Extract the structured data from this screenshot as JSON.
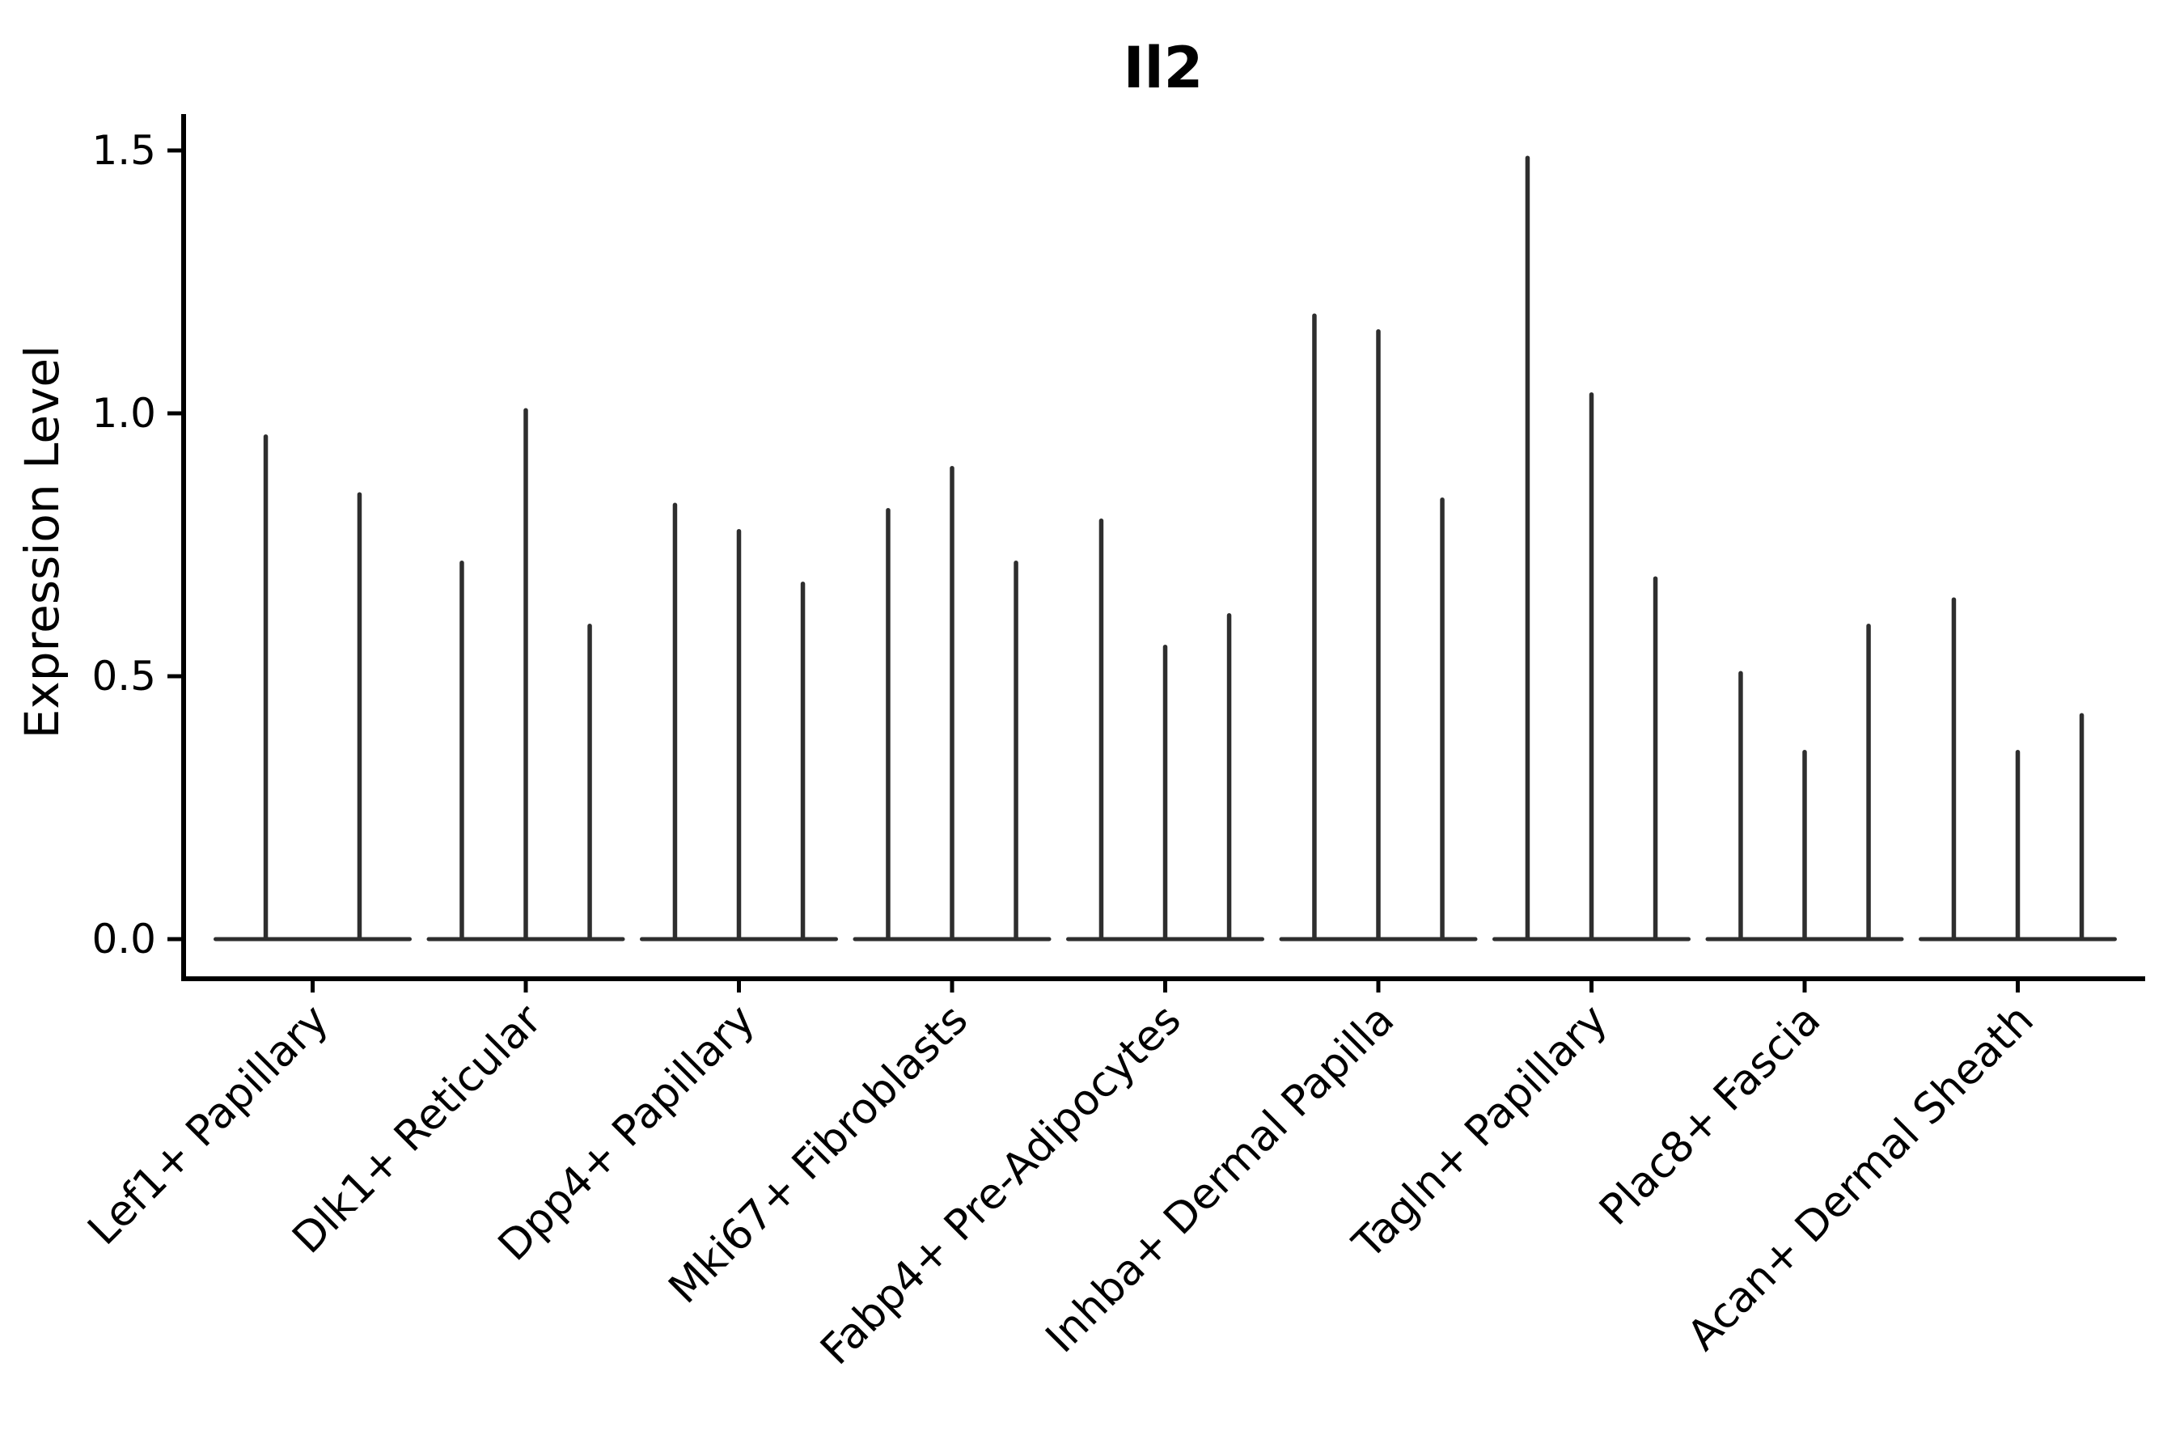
{
  "title": "Il2",
  "colors": {
    "violin": "#2e2e2e",
    "axis": "#000000",
    "text": "#000000",
    "background": "#ffffff"
  },
  "chart_data": {
    "type": "violin",
    "title": "Il2",
    "xlabel": "",
    "ylabel": "Expression Level",
    "ylim": [
      -0.08,
      1.57
    ],
    "yticks": [
      0,
      0.5,
      1,
      1.5
    ],
    "ytick_labels": [
      "0.0",
      "0.5",
      "1.0",
      "1.5"
    ],
    "grid": false,
    "legend": false,
    "x_tick_rotation": 45,
    "categories": [
      "Lef1+ Papillary",
      "Dlk1+ Reticular",
      "Dpp4+ Papillary",
      "Mki67+ Fibroblasts",
      "Fabp4+ Pre-Adipocytes",
      "Inhba+ Dermal Papilla",
      "Tagln+ Papillary",
      "Plac8+ Fascia",
      "Acan+ Dermal Sheath"
    ],
    "groups": [
      {
        "category": "Lef1+ Papillary",
        "violins": [
          {
            "offset": -0.22,
            "max": 0.96
          },
          {
            "offset": 0.22,
            "max": 0.85
          }
        ]
      },
      {
        "category": "Dlk1+ Reticular",
        "violins": [
          {
            "offset": -0.3,
            "max": 0.72
          },
          {
            "offset": 0,
            "max": 1.01
          },
          {
            "offset": 0.3,
            "max": 0.6
          }
        ]
      },
      {
        "category": "Dpp4+ Papillary",
        "violins": [
          {
            "offset": -0.3,
            "max": 0.83
          },
          {
            "offset": 0,
            "max": 0.78
          },
          {
            "offset": 0.3,
            "max": 0.68
          }
        ]
      },
      {
        "category": "Mki67+ Fibroblasts",
        "violins": [
          {
            "offset": -0.3,
            "max": 0.82
          },
          {
            "offset": 0,
            "max": 0.9
          },
          {
            "offset": 0.3,
            "max": 0.72
          }
        ]
      },
      {
        "category": "Fabp4+ Pre-Adipocytes",
        "violins": [
          {
            "offset": -0.3,
            "max": 0.8
          },
          {
            "offset": 0,
            "max": 0.56
          },
          {
            "offset": 0.3,
            "max": 0.62
          }
        ]
      },
      {
        "category": "Inhba+ Dermal Papilla",
        "violins": [
          {
            "offset": -0.3,
            "max": 1.19
          },
          {
            "offset": 0,
            "max": 1.16
          },
          {
            "offset": 0.3,
            "max": 0.84
          }
        ]
      },
      {
        "category": "Tagln+ Papillary",
        "violins": [
          {
            "offset": -0.3,
            "max": 1.49
          },
          {
            "offset": 0,
            "max": 1.04
          },
          {
            "offset": 0.3,
            "max": 0.69
          }
        ]
      },
      {
        "category": "Plac8+ Fascia",
        "violins": [
          {
            "offset": -0.3,
            "max": 0.51
          },
          {
            "offset": 0,
            "max": 0.36
          },
          {
            "offset": 0.3,
            "max": 0.6
          }
        ]
      },
      {
        "category": "Acan+ Dermal Sheath",
        "violins": [
          {
            "offset": -0.3,
            "max": 0.65
          },
          {
            "offset": 0,
            "max": 0.36
          },
          {
            "offset": 0.3,
            "max": 0.43
          }
        ]
      }
    ]
  }
}
